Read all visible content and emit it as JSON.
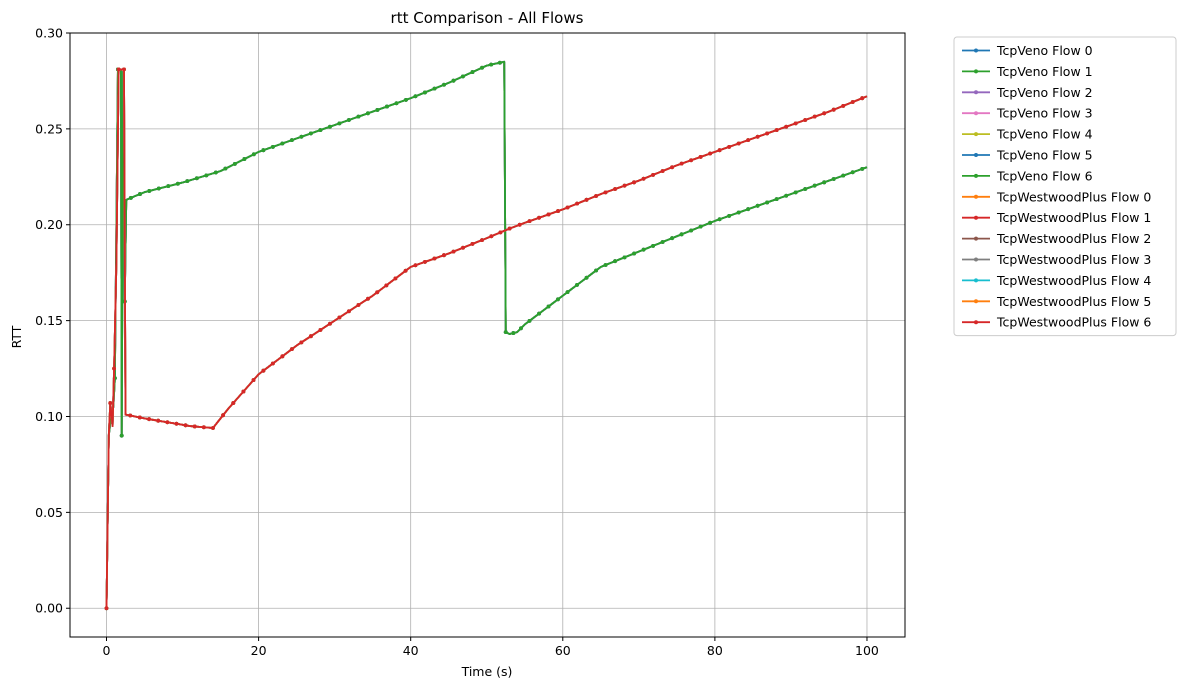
{
  "chart_data": {
    "type": "line",
    "title": "rtt Comparison - All Flows",
    "xlabel": "Time (s)",
    "ylabel": "RTT",
    "xlim": [
      -4.8,
      105
    ],
    "ylim": [
      -0.015,
      0.3
    ],
    "xticks": [
      0,
      20,
      40,
      60,
      80,
      100
    ],
    "yticks": [
      0.0,
      0.05,
      0.1,
      0.15,
      0.2,
      0.25,
      0.3
    ],
    "xtick_labels": [
      "0",
      "20",
      "40",
      "60",
      "80",
      "100"
    ],
    "ytick_labels": [
      "0.00",
      "0.05",
      "0.10",
      "0.15",
      "0.20",
      "0.25",
      "0.30"
    ],
    "grid": true,
    "legend_position": "outside-top-right",
    "series": [
      {
        "name": "TcpVeno Flow 0",
        "color": "#1f77b4",
        "group": "veno"
      },
      {
        "name": "TcpVeno Flow 1",
        "color": "#2ca02c",
        "group": "veno"
      },
      {
        "name": "TcpVeno Flow 2",
        "color": "#9467bd",
        "group": "veno"
      },
      {
        "name": "TcpVeno Flow 3",
        "color": "#e377c2",
        "group": "veno"
      },
      {
        "name": "TcpVeno Flow 4",
        "color": "#bcbd22",
        "group": "veno"
      },
      {
        "name": "TcpVeno Flow 5",
        "color": "#1f77b4",
        "group": "veno"
      },
      {
        "name": "TcpVeno Flow 6",
        "color": "#2ca02c",
        "group": "veno"
      },
      {
        "name": "TcpWestwoodPlus Flow 0",
        "color": "#ff7f0e",
        "group": "westwood"
      },
      {
        "name": "TcpWestwoodPlus Flow 1",
        "color": "#d62728",
        "group": "westwood"
      },
      {
        "name": "TcpWestwoodPlus Flow 2",
        "color": "#8c564b",
        "group": "westwood"
      },
      {
        "name": "TcpWestwoodPlus Flow 3",
        "color": "#7f7f7f",
        "group": "westwood"
      },
      {
        "name": "TcpWestwoodPlus Flow 4",
        "color": "#17becf",
        "group": "westwood"
      },
      {
        "name": "TcpWestwoodPlus Flow 5",
        "color": "#ff7f0e",
        "group": "westwood"
      },
      {
        "name": "TcpWestwoodPlus Flow 6",
        "color": "#d62728",
        "group": "westwood"
      }
    ],
    "veno_curve": [
      [
        0.0,
        0.0
      ],
      [
        0.3,
        0.09
      ],
      [
        0.6,
        0.1
      ],
      [
        0.9,
        0.105
      ],
      [
        1.1,
        0.12
      ],
      [
        1.3,
        0.2
      ],
      [
        1.5,
        0.281
      ],
      [
        1.9,
        0.281
      ],
      [
        2.0,
        0.09
      ],
      [
        2.2,
        0.28
      ],
      [
        2.4,
        0.16
      ],
      [
        2.6,
        0.213
      ],
      [
        5,
        0.217
      ],
      [
        10,
        0.222
      ],
      [
        15,
        0.228
      ],
      [
        20,
        0.238
      ],
      [
        25,
        0.245
      ],
      [
        30,
        0.252
      ],
      [
        35,
        0.259
      ],
      [
        40,
        0.266
      ],
      [
        45,
        0.274
      ],
      [
        50,
        0.283
      ],
      [
        52.3,
        0.285
      ],
      [
        52.5,
        0.144
      ],
      [
        53.0,
        0.143
      ],
      [
        54,
        0.144
      ],
      [
        55,
        0.148
      ],
      [
        60,
        0.163
      ],
      [
        65,
        0.178
      ],
      [
        70,
        0.186
      ],
      [
        75,
        0.194
      ],
      [
        80,
        0.202
      ],
      [
        85,
        0.209
      ],
      [
        90,
        0.216
      ],
      [
        95,
        0.223
      ],
      [
        100,
        0.23
      ]
    ],
    "westwood_curve": [
      [
        0.0,
        0.0
      ],
      [
        0.3,
        0.09
      ],
      [
        0.5,
        0.107
      ],
      [
        0.8,
        0.095
      ],
      [
        1.0,
        0.125
      ],
      [
        1.3,
        0.18
      ],
      [
        1.6,
        0.281
      ],
      [
        2.0,
        0.281
      ],
      [
        2.3,
        0.281
      ],
      [
        2.5,
        0.101
      ],
      [
        5,
        0.099
      ],
      [
        8,
        0.097
      ],
      [
        11,
        0.095
      ],
      [
        14,
        0.094
      ],
      [
        16,
        0.104
      ],
      [
        18,
        0.113
      ],
      [
        20,
        0.122
      ],
      [
        25,
        0.137
      ],
      [
        30,
        0.15
      ],
      [
        35,
        0.163
      ],
      [
        38,
        0.172
      ],
      [
        40,
        0.178
      ],
      [
        45,
        0.185
      ],
      [
        50,
        0.193
      ],
      [
        53,
        0.198
      ],
      [
        55,
        0.201
      ],
      [
        60,
        0.208
      ],
      [
        65,
        0.216
      ],
      [
        70,
        0.223
      ],
      [
        75,
        0.231
      ],
      [
        80,
        0.238
      ],
      [
        85,
        0.245
      ],
      [
        90,
        0.252
      ],
      [
        95,
        0.259
      ],
      [
        100,
        0.267
      ]
    ]
  }
}
